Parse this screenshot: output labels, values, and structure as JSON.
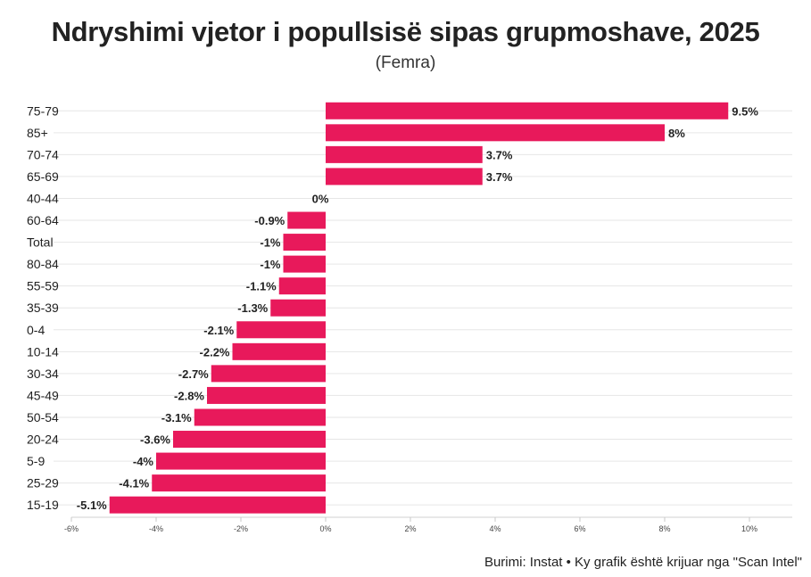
{
  "header": {
    "title": "Ndryshimi vjetor i popullsisë sipas grupmoshave, 2025",
    "subtitle": "(Femra)"
  },
  "footer": {
    "source": "Burimi: Instat • Ky grafik është krijuar nga \"Scan Intel\""
  },
  "colors": {
    "bar": "#e8195b",
    "grid": "#e6e6e6",
    "text": "#222222"
  },
  "chart_data": {
    "type": "bar",
    "orientation": "horizontal",
    "title": "Ndryshimi vjetor i popullsisë sipas grupmoshave, 2025",
    "subtitle": "(Femra)",
    "categories": [
      "75-79",
      "85+",
      "70-74",
      "65-69",
      "40-44",
      "60-64",
      "Total",
      "80-84",
      "55-59",
      "35-39",
      "0-4",
      "10-14",
      "30-34",
      "45-49",
      "50-54",
      "20-24",
      "5-9",
      "25-29",
      "15-19"
    ],
    "values": [
      9.5,
      8,
      3.7,
      3.7,
      0,
      -0.9,
      -1,
      -1,
      -1.1,
      -1.3,
      -2.1,
      -2.2,
      -2.7,
      -2.8,
      -3.1,
      -3.6,
      -4,
      -4.1,
      -5.1
    ],
    "value_labels": [
      "9.5%",
      "8%",
      "3.7%",
      "3.7%",
      "0%",
      "-0.9%",
      "-1%",
      "-1%",
      "-1.1%",
      "-1.3%",
      "-2.1%",
      "-2.2%",
      "-2.7%",
      "-2.8%",
      "-3.1%",
      "-3.6%",
      "-4%",
      "-4.1%",
      "-5.1%"
    ],
    "xlim": [
      -6,
      11
    ],
    "xticks": [
      -6,
      -4,
      -2,
      0,
      2,
      4,
      6,
      8,
      10
    ],
    "xtick_labels": [
      "-6%",
      "-4%",
      "-2%",
      "0%",
      "2%",
      "4%",
      "6%",
      "8%",
      "10%"
    ],
    "grid": true,
    "legend": false
  }
}
